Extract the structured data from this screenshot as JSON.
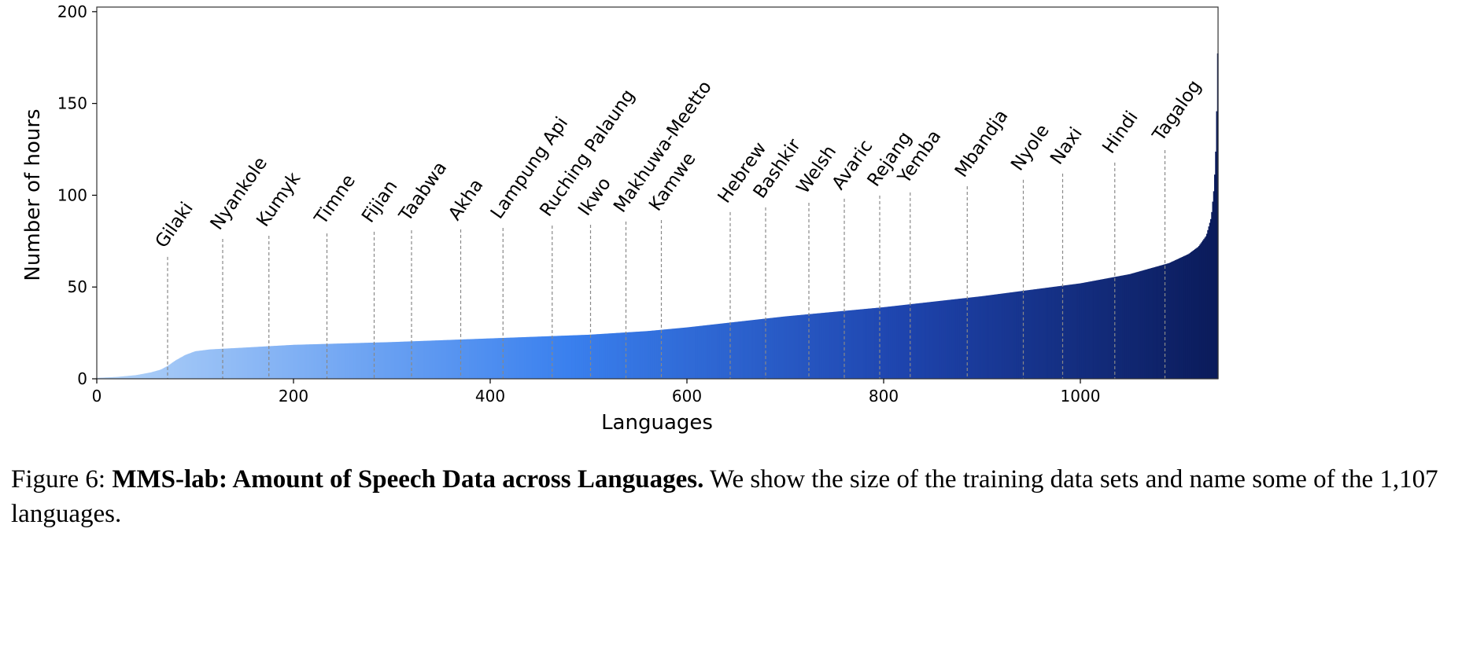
{
  "chart_data": {
    "type": "bar",
    "title": "",
    "xlabel": "Languages",
    "ylabel": "Number of hours",
    "xlim": [
      0,
      1140
    ],
    "ylim": [
      0,
      202.5
    ],
    "xticks": [
      0,
      200,
      400,
      600,
      800,
      1000
    ],
    "yticks": [
      0,
      50,
      100,
      150,
      200
    ],
    "grid": false,
    "colormap": [
      "#b3d3f8",
      "#3a80ee",
      "#1e44ad",
      "#0b1b5a"
    ],
    "curve_points": [
      [
        0,
        0.5
      ],
      [
        20,
        1
      ],
      [
        40,
        2
      ],
      [
        55,
        3.5
      ],
      [
        65,
        5
      ],
      [
        72,
        7
      ],
      [
        80,
        10
      ],
      [
        90,
        13
      ],
      [
        100,
        15
      ],
      [
        115,
        16
      ],
      [
        150,
        17
      ],
      [
        200,
        18.5
      ],
      [
        300,
        20
      ],
      [
        400,
        22
      ],
      [
        500,
        24
      ],
      [
        560,
        26
      ],
      [
        600,
        28
      ],
      [
        650,
        31
      ],
      [
        700,
        34
      ],
      [
        750,
        36.5
      ],
      [
        800,
        39
      ],
      [
        850,
        42
      ],
      [
        900,
        45
      ],
      [
        950,
        48.5
      ],
      [
        1000,
        52
      ],
      [
        1050,
        57
      ],
      [
        1090,
        63
      ],
      [
        1110,
        68
      ],
      [
        1120,
        72
      ],
      [
        1128,
        78
      ],
      [
        1133,
        88
      ],
      [
        1136,
        105
      ],
      [
        1138,
        130
      ],
      [
        1140,
        193
      ]
    ],
    "annotations": [
      {
        "label": "Gilaki",
        "x": 72,
        "top": 66.4
      },
      {
        "label": "Nyankole",
        "x": 128,
        "top": 76.2
      },
      {
        "label": "Kumyk",
        "x": 175,
        "top": 77.9
      },
      {
        "label": "Timne",
        "x": 234,
        "top": 79.2
      },
      {
        "label": "Fijian",
        "x": 282,
        "top": 80.1
      },
      {
        "label": "Taabwa",
        "x": 320,
        "top": 80.9
      },
      {
        "label": "Akha",
        "x": 370,
        "top": 81.4
      },
      {
        "label": "Lampung Api",
        "x": 413,
        "top": 82.2
      },
      {
        "label": "Ruching Palaung",
        "x": 463,
        "top": 83.5
      },
      {
        "label": "Ikwo",
        "x": 502,
        "top": 83.9
      },
      {
        "label": "Makhuwa-Meetto",
        "x": 538,
        "top": 85.7
      },
      {
        "label": "Kamwe",
        "x": 574,
        "top": 86.5
      },
      {
        "label": "Hebrew",
        "x": 644,
        "top": 90.8
      },
      {
        "label": "Bashkir",
        "x": 680,
        "top": 93.4
      },
      {
        "label": "Welsh",
        "x": 724,
        "top": 95.9
      },
      {
        "label": "Avaric",
        "x": 760,
        "top": 98.1
      },
      {
        "label": "Rejang",
        "x": 796,
        "top": 99.8
      },
      {
        "label": "Yemba",
        "x": 827,
        "top": 101.5
      },
      {
        "label": "Mbandja",
        "x": 885,
        "top": 104.9
      },
      {
        "label": "Nyole",
        "x": 942,
        "top": 108.4
      },
      {
        "label": "Naxi",
        "x": 982,
        "top": 111.8
      },
      {
        "label": "Hindi",
        "x": 1035,
        "top": 117.8
      },
      {
        "label": "Tagalog",
        "x": 1086,
        "top": 124.6
      }
    ]
  },
  "caption": {
    "prefix": "Figure 6: ",
    "bold": "MMS-lab: Amount of Speech Data across Languages.",
    "rest": " We show the size of the training data sets and name some of the 1,107 languages."
  }
}
